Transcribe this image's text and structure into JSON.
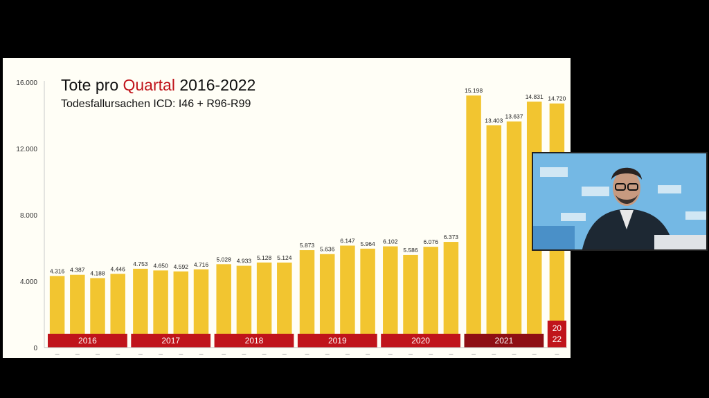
{
  "slide": {
    "title_part1": "Tote pro ",
    "title_accent": "Quartal",
    "title_part2": " 2016-2022",
    "subtitle": "Todesfallursachen ICD: I46 + R96-R99"
  },
  "colors": {
    "bar": "#f2c530",
    "year_band": "#c0141b",
    "band_2021": "#8e0f14",
    "title_accent": "#c0141b"
  },
  "chart_data": {
    "type": "bar",
    "categories": [
      "2016 Q1",
      "2016 Q2",
      "2016 Q3",
      "2016 Q4",
      "2017 Q1",
      "2017 Q2",
      "2017 Q3",
      "2017 Q4",
      "2018 Q1",
      "2018 Q2",
      "2018 Q3",
      "2018 Q4",
      "2019 Q1",
      "2019 Q2",
      "2019 Q3",
      "2019 Q4",
      "2020 Q1",
      "2020 Q2",
      "2020 Q3",
      "2020 Q4",
      "2021 Q1",
      "2021 Q2",
      "2021 Q3",
      "2021 Q4",
      "2022 Q1"
    ],
    "values": [
      4316,
      4387,
      4188,
      4446,
      4753,
      4650,
      4592,
      4716,
      5028,
      4933,
      5128,
      5124,
      5873,
      5636,
      6147,
      5964,
      6102,
      5586,
      6076,
      6373,
      15198,
      13403,
      13637,
      14831,
      14720
    ],
    "value_labels": [
      "4.316",
      "4.387",
      "4.188",
      "4.446",
      "4.753",
      "4.650",
      "4.592",
      "4.716",
      "5.028",
      "4.933",
      "5.128",
      "5.124",
      "5.873",
      "5.636",
      "6.147",
      "5.964",
      "6.102",
      "5.586",
      "6.076",
      "6.373",
      "15.198",
      "13.403",
      "13.637",
      "14.831",
      "14.720"
    ],
    "year_groups": [
      {
        "label": "2016",
        "quarters": 4
      },
      {
        "label": "2017",
        "quarters": 4
      },
      {
        "label": "2018",
        "quarters": 4
      },
      {
        "label": "2019",
        "quarters": 4
      },
      {
        "label": "2020",
        "quarters": 4
      },
      {
        "label": "2021",
        "quarters": 4
      },
      {
        "label": "20\n22",
        "quarters": 1
      }
    ],
    "y_ticks": [
      0,
      4000,
      8000,
      12000,
      16000
    ],
    "y_tick_labels": [
      "0",
      "4.000",
      "8.000",
      "12.000",
      "16.000"
    ],
    "ylim": [
      0,
      16000
    ],
    "grid": false,
    "legend": "none"
  }
}
